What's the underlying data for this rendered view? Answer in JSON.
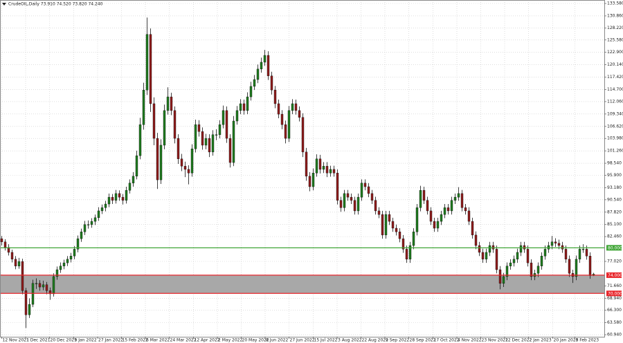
{
  "chart_data": {
    "type": "candlestick",
    "title": "CrudeOIL,Daily  73.910 74.520 73.820 74.240",
    "up_color": "#1e7b1e",
    "down_color": "#8e1b1b",
    "wick_color": "#111111",
    "grid": true,
    "xlim": [
      -0.5,
      174.1
    ],
    "ylim": [
      60.49,
      134.34
    ],
    "xticks": [
      {
        "value": 0,
        "label": "12 Nov 2021"
      },
      {
        "value": 6.9,
        "label": "1 Dec 2021"
      },
      {
        "value": 13.8,
        "label": "20 Dec 2021"
      },
      {
        "value": 20.8,
        "label": "9 Jan 2022"
      },
      {
        "value": 27.7,
        "label": "27 Jan 2022"
      },
      {
        "value": 34.6,
        "label": "15 Feb 2022"
      },
      {
        "value": 41.5,
        "label": "6 Mar 2022"
      },
      {
        "value": 48.4,
        "label": "24 Mar 2022"
      },
      {
        "value": 55.4,
        "label": "12 Apr 2022"
      },
      {
        "value": 62.3,
        "label": "2 May 2022"
      },
      {
        "value": 69.2,
        "label": "20 May 2022"
      },
      {
        "value": 76.1,
        "label": "8 Jun 2022"
      },
      {
        "value": 83,
        "label": "27 Jun 2022"
      },
      {
        "value": 90,
        "label": "15 Jul 2022"
      },
      {
        "value": 96.9,
        "label": "3 Aug 2022"
      },
      {
        "value": 103.8,
        "label": "22 Aug 2022"
      },
      {
        "value": 110.7,
        "label": "9 Sep 2022"
      },
      {
        "value": 117.6,
        "label": "28 Sep 2022"
      },
      {
        "value": 124.6,
        "label": "17 Oct 2022"
      },
      {
        "value": 131.5,
        "label": "4 Nov 2022"
      },
      {
        "value": 138.4,
        "label": "23 Nov 2022"
      },
      {
        "value": 145.3,
        "label": "12 Dec 2022"
      },
      {
        "value": 152.2,
        "label": "2 Jan 2023"
      },
      {
        "value": 159.2,
        "label": "20 Jan 2023"
      },
      {
        "value": 165.6,
        "label": "8 Feb 2023"
      }
    ],
    "yticks": [
      {
        "value": 133.58,
        "label": "133.580"
      },
      {
        "value": 130.86,
        "label": "130.860"
      },
      {
        "value": 128.22,
        "label": "128.220"
      },
      {
        "value": 125.58,
        "label": "125.580"
      },
      {
        "value": 122.9,
        "label": "122.900"
      },
      {
        "value": 120.14,
        "label": "120.140"
      },
      {
        "value": 117.42,
        "label": "117.420"
      },
      {
        "value": 114.7,
        "label": "114.700"
      },
      {
        "value": 112.06,
        "label": "112.060"
      },
      {
        "value": 109.34,
        "label": "109.340"
      },
      {
        "value": 106.62,
        "label": "106.620"
      },
      {
        "value": 103.98,
        "label": "103.980"
      },
      {
        "value": 101.26,
        "label": "101.260"
      },
      {
        "value": 98.54,
        "label": "98.540"
      },
      {
        "value": 95.9,
        "label": "95.900"
      },
      {
        "value": 93.18,
        "label": "93.180"
      },
      {
        "value": 90.54,
        "label": "90.540"
      },
      {
        "value": 87.82,
        "label": "87.820"
      },
      {
        "value": 85.1,
        "label": "85.100"
      },
      {
        "value": 82.46,
        "label": "82.460"
      },
      {
        "value": 77.02,
        "label": "77.020"
      },
      {
        "value": 71.66,
        "label": "71.660"
      },
      {
        "value": 68.94,
        "label": "68.940"
      },
      {
        "value": 66.3,
        "label": "66.300"
      },
      {
        "value": 63.58,
        "label": "63.580"
      },
      {
        "value": 60.94,
        "label": "60.940"
      }
    ],
    "zone": {
      "top": 74,
      "bottom": 70,
      "color": "#a8a8a8"
    },
    "levels": [
      {
        "value": 80,
        "label": "80.000",
        "color": "#3fa535"
      },
      {
        "value": 74,
        "label": "74.000",
        "color": "#e8262b"
      },
      {
        "value": 70,
        "label": "70.000",
        "color": "#e8262b"
      }
    ],
    "ohlc": [
      [
        82.0,
        82.6,
        80.5,
        81.3
      ],
      [
        81.3,
        81.9,
        79.4,
        80.1
      ],
      [
        80.1,
        80.8,
        78.3,
        79.0
      ],
      [
        79.0,
        79.6,
        76.8,
        77.5
      ],
      [
        77.5,
        78.2,
        75.3,
        76.0
      ],
      [
        76.0,
        77.8,
        75.4,
        77.0
      ],
      [
        77.0,
        77.6,
        69.8,
        70.6
      ],
      [
        70.6,
        71.2,
        62.4,
        65.3
      ],
      [
        65.3,
        68.9,
        64.6,
        67.6
      ],
      [
        67.6,
        73.0,
        67.0,
        72.2
      ],
      [
        72.2,
        73.3,
        71.0,
        72.2
      ],
      [
        72.2,
        72.9,
        70.6,
        71.4
      ],
      [
        71.4,
        72.8,
        70.7,
        71.9
      ],
      [
        71.9,
        72.5,
        69.8,
        70.6
      ],
      [
        70.6,
        71.3,
        68.6,
        69.9
      ],
      [
        69.9,
        74.4,
        69.3,
        73.7
      ],
      [
        73.7,
        75.9,
        73.0,
        75.2
      ],
      [
        75.2,
        76.8,
        74.5,
        76.0
      ],
      [
        76.0,
        77.4,
        75.3,
        76.7
      ],
      [
        76.7,
        78.2,
        76.0,
        77.5
      ],
      [
        77.5,
        78.9,
        76.8,
        78.2
      ],
      [
        78.2,
        80.4,
        77.5,
        79.7
      ],
      [
        79.7,
        82.7,
        79.0,
        82.0
      ],
      [
        82.0,
        84.2,
        81.3,
        83.5
      ],
      [
        83.5,
        85.9,
        82.8,
        85.1
      ],
      [
        85.1,
        86.0,
        84.2,
        85.1
      ],
      [
        85.1,
        86.5,
        84.4,
        85.8
      ],
      [
        85.8,
        87.3,
        85.0,
        86.6
      ],
      [
        86.6,
        88.9,
        85.9,
        88.1
      ],
      [
        88.1,
        89.5,
        87.4,
        88.8
      ],
      [
        88.8,
        90.3,
        88.0,
        89.6
      ],
      [
        89.6,
        91.9,
        88.9,
        91.1
      ],
      [
        91.1,
        91.8,
        89.6,
        90.4
      ],
      [
        90.4,
        92.7,
        89.7,
        91.9
      ],
      [
        91.9,
        92.6,
        90.3,
        91.1
      ],
      [
        91.1,
        91.8,
        89.5,
        90.4
      ],
      [
        90.4,
        93.4,
        89.7,
        92.6
      ],
      [
        92.6,
        95.0,
        91.9,
        94.2
      ],
      [
        94.2,
        96.6,
        93.4,
        95.7
      ],
      [
        95.7,
        101.3,
        95.0,
        100.2
      ],
      [
        100.2,
        108.5,
        99.4,
        107.0
      ],
      [
        107.0,
        116.2,
        105.9,
        114.6
      ],
      [
        114.6,
        130.5,
        113.5,
        126.8
      ],
      [
        126.8,
        128.1,
        109.8,
        111.6
      ],
      [
        111.6,
        113.0,
        102.5,
        104.0
      ],
      [
        104.0,
        105.2,
        92.9,
        94.9
      ],
      [
        94.9,
        103.8,
        94.0,
        102.5
      ],
      [
        102.5,
        111.4,
        101.6,
        110.1
      ],
      [
        110.1,
        115.2,
        109.2,
        113.1
      ],
      [
        113.1,
        114.0,
        109.1,
        110.1
      ],
      [
        110.1,
        111.0,
        102.9,
        104.0
      ],
      [
        104.0,
        104.9,
        98.4,
        99.5
      ],
      [
        99.5,
        100.6,
        96.8,
        97.9
      ],
      [
        97.9,
        98.9,
        95.5,
        97.2
      ],
      [
        97.2,
        98.1,
        93.9,
        96.4
      ],
      [
        96.4,
        102.7,
        95.6,
        101.7
      ],
      [
        101.7,
        108.1,
        100.9,
        107.0
      ],
      [
        107.0,
        108.0,
        104.4,
        105.5
      ],
      [
        105.5,
        106.4,
        101.5,
        102.5
      ],
      [
        102.5,
        105.0,
        101.6,
        104.0
      ],
      [
        104.0,
        104.9,
        99.9,
        101.0
      ],
      [
        101.0,
        105.8,
        100.2,
        104.8
      ],
      [
        104.8,
        106.0,
        103.6,
        104.8
      ],
      [
        104.8,
        108.0,
        104.0,
        107.0
      ],
      [
        107.0,
        111.2,
        106.2,
        110.1
      ],
      [
        110.1,
        111.0,
        103.0,
        104.0
      ],
      [
        104.0,
        104.9,
        97.6,
        98.7
      ],
      [
        98.7,
        108.9,
        97.9,
        107.8
      ],
      [
        107.8,
        111.1,
        107.0,
        110.1
      ],
      [
        110.1,
        112.6,
        109.3,
        111.6
      ],
      [
        111.6,
        112.5,
        109.2,
        110.1
      ],
      [
        110.1,
        114.1,
        109.3,
        113.1
      ],
      [
        113.1,
        116.4,
        112.3,
        115.4
      ],
      [
        115.4,
        117.9,
        114.6,
        116.9
      ],
      [
        116.9,
        120.2,
        116.1,
        119.2
      ],
      [
        119.2,
        121.7,
        118.4,
        120.7
      ],
      [
        120.7,
        123.4,
        119.9,
        122.2
      ],
      [
        122.2,
        123.1,
        116.8,
        117.7
      ],
      [
        117.7,
        118.6,
        113.6,
        114.6
      ],
      [
        114.6,
        115.5,
        110.6,
        111.6
      ],
      [
        111.6,
        112.5,
        108.4,
        109.3
      ],
      [
        109.3,
        110.2,
        106.0,
        107.0
      ],
      [
        107.0,
        107.9,
        102.9,
        104.0
      ],
      [
        104.0,
        111.1,
        103.2,
        110.1
      ],
      [
        110.1,
        112.6,
        109.3,
        111.6
      ],
      [
        111.6,
        112.5,
        109.2,
        110.1
      ],
      [
        110.1,
        111.0,
        107.7,
        108.6
      ],
      [
        108.6,
        109.5,
        99.9,
        101.0
      ],
      [
        101.0,
        101.9,
        94.7,
        95.7
      ],
      [
        95.7,
        96.6,
        92.4,
        93.4
      ],
      [
        93.4,
        97.4,
        92.6,
        96.4
      ],
      [
        96.4,
        100.5,
        95.6,
        99.5
      ],
      [
        99.5,
        100.4,
        96.3,
        97.2
      ],
      [
        97.2,
        98.8,
        96.4,
        97.9
      ],
      [
        97.9,
        98.8,
        95.5,
        96.4
      ],
      [
        96.4,
        98.0,
        95.6,
        97.2
      ],
      [
        97.2,
        98.0,
        95.6,
        96.4
      ],
      [
        96.4,
        97.2,
        89.5,
        90.4
      ],
      [
        90.4,
        91.2,
        87.9,
        88.8
      ],
      [
        88.8,
        92.7,
        88.0,
        91.9
      ],
      [
        91.9,
        92.7,
        90.3,
        91.1
      ],
      [
        91.1,
        91.9,
        89.6,
        90.4
      ],
      [
        90.4,
        91.2,
        87.3,
        88.1
      ],
      [
        88.1,
        91.9,
        87.3,
        91.1
      ],
      [
        91.1,
        95.0,
        90.3,
        94.2
      ],
      [
        94.2,
        95.0,
        92.6,
        93.4
      ],
      [
        93.4,
        94.2,
        91.1,
        91.9
      ],
      [
        91.9,
        92.7,
        89.6,
        90.4
      ],
      [
        90.4,
        91.2,
        87.3,
        88.1
      ],
      [
        88.1,
        88.9,
        86.5,
        87.3
      ],
      [
        87.3,
        88.1,
        82.0,
        82.8
      ],
      [
        82.8,
        88.1,
        82.0,
        87.3
      ],
      [
        87.3,
        88.1,
        85.0,
        85.8
      ],
      [
        85.8,
        86.6,
        83.5,
        84.3
      ],
      [
        84.3,
        85.1,
        82.7,
        83.5
      ],
      [
        83.5,
        84.3,
        81.2,
        82.0
      ],
      [
        82.0,
        82.8,
        78.9,
        79.7
      ],
      [
        79.7,
        80.5,
        76.7,
        77.5
      ],
      [
        77.5,
        81.3,
        76.7,
        80.5
      ],
      [
        80.5,
        84.3,
        79.7,
        83.5
      ],
      [
        83.5,
        89.6,
        82.7,
        88.8
      ],
      [
        88.8,
        93.6,
        88.0,
        92.6
      ],
      [
        92.6,
        93.4,
        89.6,
        90.4
      ],
      [
        90.4,
        91.2,
        87.3,
        88.1
      ],
      [
        88.1,
        88.9,
        85.0,
        85.8
      ],
      [
        85.8,
        86.6,
        83.5,
        84.3
      ],
      [
        84.3,
        86.6,
        83.5,
        85.8
      ],
      [
        85.8,
        88.1,
        85.0,
        87.3
      ],
      [
        87.3,
        89.6,
        86.5,
        88.8
      ],
      [
        88.8,
        89.6,
        87.3,
        88.1
      ],
      [
        88.1,
        91.2,
        87.3,
        90.4
      ],
      [
        90.4,
        91.9,
        89.6,
        91.1
      ],
      [
        91.1,
        93.3,
        90.3,
        91.9
      ],
      [
        91.9,
        92.7,
        88.0,
        88.8
      ],
      [
        88.8,
        89.6,
        87.3,
        88.1
      ],
      [
        88.1,
        88.9,
        85.0,
        85.8
      ],
      [
        85.8,
        86.6,
        82.0,
        82.8
      ],
      [
        82.8,
        83.6,
        79.7,
        80.5
      ],
      [
        80.5,
        81.3,
        78.2,
        79.0
      ],
      [
        79.0,
        79.8,
        76.7,
        77.5
      ],
      [
        77.5,
        79.8,
        76.7,
        79.0
      ],
      [
        79.0,
        81.3,
        78.2,
        80.5
      ],
      [
        80.5,
        81.3,
        78.9,
        79.7
      ],
      [
        79.7,
        80.5,
        74.4,
        75.2
      ],
      [
        75.2,
        76.0,
        70.9,
        72.2
      ],
      [
        72.2,
        74.5,
        71.4,
        73.7
      ],
      [
        73.7,
        76.8,
        72.9,
        76.0
      ],
      [
        76.0,
        77.5,
        75.2,
        76.7
      ],
      [
        76.7,
        78.3,
        75.9,
        77.5
      ],
      [
        77.5,
        79.8,
        76.7,
        79.0
      ],
      [
        79.0,
        81.3,
        78.2,
        80.5
      ],
      [
        80.5,
        81.3,
        78.9,
        79.7
      ],
      [
        79.7,
        80.5,
        75.9,
        76.7
      ],
      [
        76.7,
        77.5,
        72.9,
        73.7
      ],
      [
        73.7,
        75.2,
        72.9,
        74.4
      ],
      [
        74.4,
        76.8,
        73.6,
        76.0
      ],
      [
        76.0,
        79.0,
        75.2,
        78.2
      ],
      [
        78.2,
        80.5,
        77.4,
        79.7
      ],
      [
        79.7,
        81.3,
        78.9,
        80.5
      ],
      [
        80.5,
        82.6,
        79.7,
        81.3
      ],
      [
        81.3,
        82.1,
        80.2,
        81.0
      ],
      [
        81.0,
        81.8,
        79.7,
        80.5
      ],
      [
        80.5,
        81.3,
        78.9,
        79.7
      ],
      [
        79.7,
        80.5,
        76.7,
        77.5
      ],
      [
        77.5,
        78.3,
        73.6,
        74.4
      ],
      [
        74.4,
        75.2,
        72.3,
        73.7
      ],
      [
        73.7,
        78.3,
        72.9,
        77.5
      ],
      [
        77.5,
        80.5,
        76.7,
        79.7
      ],
      [
        79.7,
        80.8,
        78.9,
        79.7
      ],
      [
        79.7,
        80.5,
        77.4,
        78.2
      ],
      [
        78.2,
        79.0,
        73.2,
        73.9
      ],
      [
        73.91,
        74.52,
        73.82,
        74.24
      ]
    ]
  }
}
